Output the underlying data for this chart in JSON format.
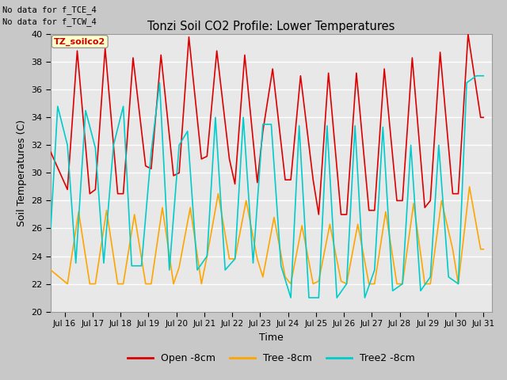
{
  "title": "Tonzi Soil CO2 Profile: Lower Temperatures",
  "xlabel": "Time",
  "ylabel": "Soil Temperatures (C)",
  "ylim": [
    20,
    40
  ],
  "xlim_days": [
    15.5,
    31.3
  ],
  "xtick_days": [
    16,
    17,
    18,
    19,
    20,
    21,
    22,
    23,
    24,
    25,
    26,
    27,
    28,
    29,
    30,
    31
  ],
  "xtick_labels": [
    "Jul 16",
    "Jul 17",
    "Jul 18",
    "Jul 19",
    "Jul 20",
    "Jul 21",
    "Jul 22",
    "Jul 23",
    "Jul 24",
    "Jul 25",
    "Jul 26",
    "Jul 27",
    "Jul 28",
    "Jul 29",
    "Jul 30",
    "Jul 31"
  ],
  "ytick_vals": [
    20,
    22,
    24,
    26,
    28,
    30,
    32,
    34,
    36,
    38,
    40
  ],
  "legend_entries": [
    "Open -8cm",
    "Tree -8cm",
    "Tree2 -8cm"
  ],
  "colors": [
    "#dd0000",
    "#ffa500",
    "#00cccc"
  ],
  "annotations": [
    "No data for f_TCE_4",
    "No data for f_TCW_4"
  ],
  "legend_box_label": "TZ_soilco2",
  "open_data": {
    "days": [
      15.5,
      16.1,
      16.45,
      16.9,
      17.1,
      17.45,
      17.9,
      18.1,
      18.45,
      18.9,
      19.1,
      19.45,
      19.9,
      20.1,
      20.45,
      20.9,
      21.1,
      21.45,
      21.9,
      22.1,
      22.45,
      22.9,
      23.1,
      23.45,
      23.9,
      24.1,
      24.45,
      24.9,
      25.1,
      25.45,
      25.9,
      26.1,
      26.45,
      26.9,
      27.1,
      27.45,
      27.9,
      28.1,
      28.45,
      28.9,
      29.1,
      29.45,
      29.9,
      30.1,
      30.45,
      30.9,
      31.0
    ],
    "vals": [
      31.5,
      28.8,
      38.8,
      28.5,
      28.8,
      39.0,
      28.5,
      28.5,
      38.3,
      30.5,
      30.3,
      38.5,
      29.8,
      30.0,
      39.8,
      31.0,
      31.2,
      38.8,
      31.0,
      29.2,
      38.5,
      29.3,
      33.0,
      37.5,
      29.5,
      29.5,
      37.0,
      29.5,
      27.0,
      37.2,
      27.0,
      27.0,
      37.2,
      27.3,
      27.3,
      37.5,
      28.0,
      28.0,
      38.3,
      27.5,
      28.0,
      38.7,
      28.5,
      28.5,
      40.0,
      34.0,
      34.0
    ]
  },
  "tree_data": {
    "days": [
      15.5,
      16.1,
      16.5,
      16.9,
      17.1,
      17.5,
      17.9,
      18.1,
      18.5,
      18.9,
      19.1,
      19.5,
      19.9,
      20.1,
      20.5,
      20.9,
      21.1,
      21.5,
      21.9,
      22.1,
      22.5,
      22.9,
      23.1,
      23.5,
      23.9,
      24.1,
      24.5,
      24.9,
      25.1,
      25.5,
      25.9,
      26.1,
      26.5,
      26.9,
      27.1,
      27.5,
      27.9,
      28.1,
      28.5,
      28.9,
      29.1,
      29.5,
      29.9,
      30.1,
      30.5,
      30.9,
      31.0
    ],
    "vals": [
      23.0,
      22.0,
      27.2,
      22.0,
      22.0,
      27.3,
      22.0,
      22.0,
      27.0,
      22.0,
      22.0,
      27.5,
      22.0,
      23.2,
      27.5,
      22.0,
      24.0,
      28.5,
      23.8,
      23.8,
      28.0,
      23.8,
      22.5,
      26.8,
      22.5,
      22.0,
      26.2,
      22.0,
      22.2,
      26.3,
      22.2,
      22.0,
      26.3,
      22.0,
      22.0,
      27.2,
      22.0,
      22.0,
      27.8,
      22.0,
      22.0,
      28.0,
      24.5,
      22.0,
      29.0,
      24.5,
      24.5
    ]
  },
  "tree2_data": {
    "days": [
      15.5,
      15.75,
      16.1,
      16.4,
      16.75,
      17.1,
      17.4,
      17.75,
      18.1,
      18.4,
      18.75,
      19.1,
      19.4,
      19.75,
      20.1,
      20.4,
      20.75,
      21.1,
      21.4,
      21.75,
      22.1,
      22.4,
      22.75,
      23.1,
      23.4,
      23.75,
      24.1,
      24.4,
      24.75,
      25.1,
      25.4,
      25.75,
      26.1,
      26.4,
      26.75,
      27.1,
      27.4,
      27.75,
      28.1,
      28.4,
      28.75,
      29.1,
      29.4,
      29.75,
      30.1,
      30.4,
      30.75,
      31.0
    ],
    "vals": [
      26.0,
      34.8,
      32.0,
      23.5,
      34.5,
      31.8,
      23.5,
      32.0,
      34.8,
      23.3,
      23.3,
      31.5,
      36.5,
      23.0,
      32.0,
      33.0,
      23.0,
      24.0,
      34.0,
      23.0,
      23.8,
      34.0,
      23.5,
      33.5,
      33.5,
      23.3,
      21.0,
      33.4,
      21.0,
      21.0,
      33.4,
      21.0,
      22.0,
      33.4,
      21.0,
      23.0,
      33.3,
      21.5,
      22.0,
      32.0,
      21.5,
      22.5,
      32.0,
      22.5,
      22.0,
      36.5,
      37.0,
      37.0
    ]
  }
}
